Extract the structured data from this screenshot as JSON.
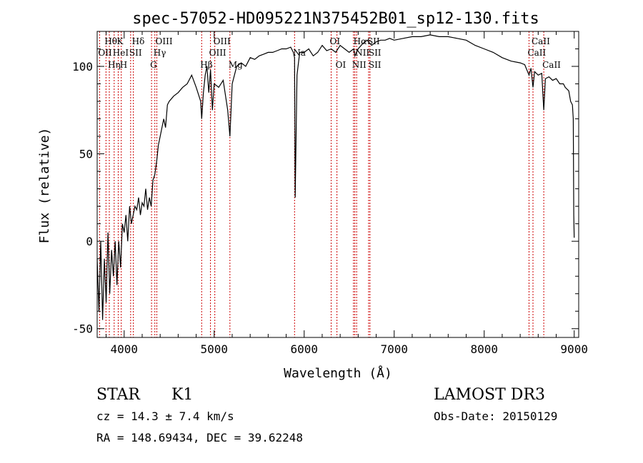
{
  "chart_data": {
    "type": "line",
    "title": "spec-57052-HD095221N375452B01_sp12-130.fits",
    "xlabel": "Wavelength (Å)",
    "ylabel": "Flux (relative)",
    "xlim": [
      3700,
      9050
    ],
    "ylim": [
      -55,
      120
    ],
    "xticks": [
      4000,
      5000,
      6000,
      7000,
      8000,
      9000
    ],
    "yticks": [
      -50,
      0,
      50,
      100
    ],
    "series": [
      {
        "name": "flux",
        "x": [
          3700,
          3720,
          3740,
          3760,
          3780,
          3800,
          3820,
          3840,
          3860,
          3880,
          3900,
          3920,
          3940,
          3960,
          3980,
          4000,
          4020,
          4040,
          4060,
          4080,
          4100,
          4120,
          4140,
          4160,
          4180,
          4200,
          4220,
          4240,
          4260,
          4280,
          4300,
          4320,
          4340,
          4360,
          4380,
          4400,
          4420,
          4440,
          4460,
          4480,
          4500,
          4550,
          4600,
          4650,
          4700,
          4750,
          4800,
          4850,
          4861,
          4880,
          4900,
          4920,
          4940,
          4960,
          4980,
          5000,
          5050,
          5100,
          5150,
          5175,
          5200,
          5250,
          5300,
          5350,
          5400,
          5450,
          5500,
          5550,
          5600,
          5650,
          5700,
          5750,
          5800,
          5850,
          5880,
          5893,
          5900,
          5920,
          5950,
          6000,
          6050,
          6100,
          6150,
          6200,
          6250,
          6300,
          6350,
          6400,
          6450,
          6500,
          6550,
          6563,
          6600,
          6650,
          6700,
          6750,
          6800,
          6850,
          6900,
          6950,
          7000,
          7100,
          7200,
          7300,
          7400,
          7500,
          7600,
          7700,
          7800,
          7900,
          8000,
          8100,
          8200,
          8300,
          8400,
          8450,
          8498,
          8520,
          8542,
          8560,
          8600,
          8640,
          8662,
          8680,
          8720,
          8760,
          8800,
          8840,
          8880,
          8900,
          8940,
          8960,
          8980,
          8990,
          8995,
          9000
        ],
        "y": [
          -10,
          -40,
          0,
          -45,
          -10,
          -35,
          5,
          -30,
          -5,
          -20,
          0,
          -25,
          0,
          -15,
          10,
          5,
          15,
          0,
          20,
          10,
          15,
          20,
          18,
          25,
          15,
          22,
          20,
          30,
          18,
          25,
          20,
          35,
          38,
          45,
          55,
          60,
          65,
          70,
          65,
          78,
          80,
          83,
          85,
          88,
          90,
          95,
          88,
          80,
          70,
          85,
          95,
          100,
          85,
          98,
          75,
          90,
          88,
          92,
          75,
          60,
          90,
          100,
          102,
          100,
          105,
          104,
          106,
          107,
          108,
          108,
          109,
          110,
          110,
          111,
          108,
          105,
          25,
          95,
          108,
          108,
          110,
          106,
          108,
          112,
          109,
          110,
          108,
          112,
          110,
          108,
          110,
          106,
          110,
          113,
          115,
          112,
          114,
          115,
          115,
          116,
          115,
          116,
          117,
          117,
          118,
          117,
          117,
          116,
          115,
          112,
          110,
          108,
          105,
          103,
          102,
          101,
          95,
          99,
          88,
          97,
          95,
          96,
          75,
          93,
          94,
          92,
          93,
          90,
          90,
          88,
          86,
          80,
          78,
          70,
          15,
          2
        ]
      }
    ],
    "line_labels": [
      {
        "label": "Hθ",
        "x": 3798,
        "row": 1
      },
      {
        "label": "OII",
        "x": 3727,
        "row": 2
      },
      {
        "label": "Hη",
        "x": 3835,
        "row": 3
      },
      {
        "label": "K",
        "x": 3934,
        "row": 1
      },
      {
        "label": "HeI",
        "x": 3889,
        "row": 2
      },
      {
        "label": "H",
        "x": 3968,
        "row": 3
      },
      {
        "label": "Hδ",
        "x": 4102,
        "row": 1
      },
      {
        "label": "SII",
        "x": 4072,
        "row": 2
      },
      {
        "label": "OIII",
        "x": 4363,
        "row": 1
      },
      {
        "label": "Hγ",
        "x": 4341,
        "row": 2
      },
      {
        "label": "G",
        "x": 4304,
        "row": 3
      },
      {
        "label": "OIII",
        "x": 5007,
        "row": 1
      },
      {
        "label": "OIII",
        "x": 4959,
        "row": 2
      },
      {
        "label": "Hβ",
        "x": 4861,
        "row": 3
      },
      {
        "label": "Mg",
        "x": 5175,
        "row": 3
      },
      {
        "label": "Na",
        "x": 5893,
        "row": 2
      },
      {
        "label": "OI",
        "x": 6300,
        "row": 1
      },
      {
        "label": "OI",
        "x": 6364,
        "row": 3
      },
      {
        "label": "Hα",
        "x": 6563,
        "row": 1
      },
      {
        "label": "SII",
        "x": 6716,
        "row": 1
      },
      {
        "label": "NII",
        "x": 6583,
        "row": 2
      },
      {
        "label": "SII",
        "x": 6731,
        "row": 2
      },
      {
        "label": "NII",
        "x": 6548,
        "row": 3
      },
      {
        "label": "SII",
        "x": 6731,
        "row": 3
      },
      {
        "label": "CaII",
        "x": 8542,
        "row": 1
      },
      {
        "label": "CaII",
        "x": 8498,
        "row": 2
      },
      {
        "label": "CaII",
        "x": 8662,
        "row": 3
      }
    ],
    "marker_lines": [
      3727,
      3798,
      3835,
      3889,
      3934,
      3968,
      4072,
      4102,
      4304,
      4341,
      4363,
      4861,
      4959,
      5007,
      5175,
      5893,
      6300,
      6364,
      6548,
      6563,
      6583,
      6716,
      6731,
      8498,
      8542,
      8662
    ]
  },
  "info": {
    "object_class": "STAR",
    "subclass": "K1",
    "survey": "LAMOST DR3",
    "cz": "cz = 14.3 ± 7.4 km/s",
    "obs_date": "Obs-Date: 20150129",
    "coords": "RA = 148.69434, DEC =  39.62248"
  },
  "colors": {
    "marker": "#cc0000",
    "line": "#000000"
  }
}
